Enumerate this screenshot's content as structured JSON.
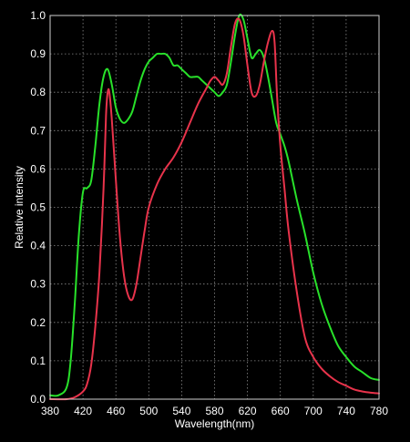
{
  "chart_data": {
    "type": "line",
    "title": "",
    "xlabel": "Wavelength(nm)",
    "ylabel": "Relative intensity",
    "xlim": [
      380,
      780
    ],
    "ylim": [
      0,
      1
    ],
    "x_ticks": [
      380,
      420,
      460,
      500,
      540,
      580,
      620,
      660,
      700,
      740,
      780
    ],
    "y_ticks": [
      "0.0",
      "0.1",
      "0.2",
      "0.3",
      "0.4",
      "0.5",
      "0.6",
      "0.7",
      "0.8",
      "0.9",
      "1.0"
    ],
    "grid": true,
    "legend": "none",
    "series": [
      {
        "color": "#28e12a",
        "x": [
          380,
          390,
          400,
          405,
          410,
          415,
          420,
          425,
          430,
          435,
          440,
          445,
          450,
          455,
          460,
          465,
          470,
          475,
          480,
          485,
          490,
          495,
          500,
          505,
          510,
          515,
          520,
          525,
          530,
          535,
          540,
          545,
          550,
          555,
          560,
          565,
          570,
          575,
          580,
          585,
          590,
          595,
          600,
          605,
          610,
          615,
          620,
          625,
          630,
          635,
          640,
          645,
          650,
          655,
          660,
          665,
          670,
          680,
          690,
          700,
          710,
          720,
          730,
          740,
          750,
          760,
          770,
          780
        ],
        "values": [
          0.01,
          0.01,
          0.03,
          0.1,
          0.25,
          0.43,
          0.54,
          0.55,
          0.57,
          0.66,
          0.77,
          0.84,
          0.86,
          0.82,
          0.76,
          0.73,
          0.72,
          0.73,
          0.75,
          0.79,
          0.83,
          0.86,
          0.88,
          0.89,
          0.9,
          0.9,
          0.9,
          0.89,
          0.87,
          0.87,
          0.86,
          0.85,
          0.84,
          0.84,
          0.84,
          0.83,
          0.82,
          0.81,
          0.8,
          0.79,
          0.8,
          0.82,
          0.88,
          0.95,
          1.0,
          0.99,
          0.94,
          0.89,
          0.9,
          0.91,
          0.89,
          0.84,
          0.78,
          0.72,
          0.69,
          0.66,
          0.62,
          0.52,
          0.43,
          0.33,
          0.25,
          0.19,
          0.14,
          0.11,
          0.085,
          0.07,
          0.055,
          0.05
        ]
      },
      {
        "color": "#e8334b",
        "x": [
          380,
          400,
          410,
          420,
          425,
          430,
          435,
          440,
          445,
          448,
          450,
          452,
          455,
          460,
          465,
          470,
          475,
          480,
          485,
          490,
          495,
          500,
          510,
          520,
          530,
          540,
          550,
          560,
          570,
          575,
          580,
          585,
          590,
          595,
          600,
          605,
          610,
          615,
          620,
          625,
          630,
          635,
          640,
          645,
          650,
          653,
          656,
          660,
          665,
          670,
          680,
          690,
          700,
          710,
          720,
          730,
          740,
          750,
          760,
          770,
          780
        ],
        "values": [
          0.0,
          0.0,
          0.005,
          0.02,
          0.04,
          0.09,
          0.19,
          0.33,
          0.55,
          0.74,
          0.8,
          0.8,
          0.73,
          0.57,
          0.42,
          0.32,
          0.27,
          0.26,
          0.3,
          0.37,
          0.44,
          0.5,
          0.56,
          0.6,
          0.63,
          0.67,
          0.72,
          0.77,
          0.81,
          0.83,
          0.84,
          0.83,
          0.82,
          0.85,
          0.92,
          0.98,
          0.99,
          0.95,
          0.87,
          0.8,
          0.79,
          0.82,
          0.88,
          0.93,
          0.96,
          0.93,
          0.79,
          0.66,
          0.55,
          0.44,
          0.28,
          0.16,
          0.11,
          0.08,
          0.06,
          0.045,
          0.035,
          0.025,
          0.02,
          0.017,
          0.015
        ]
      }
    ]
  }
}
